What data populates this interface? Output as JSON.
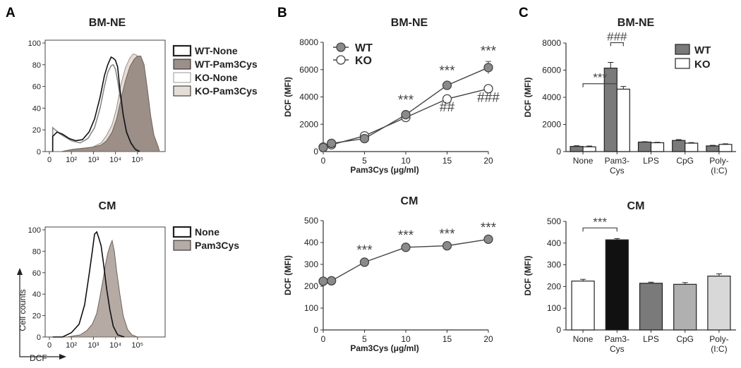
{
  "panels": {
    "A": "A",
    "B": "B",
    "C": "C"
  },
  "chart_data": [
    {
      "id": "A_top",
      "type": "histogram",
      "panel": "A",
      "title": "BM-NE",
      "x_ticks": [
        "0",
        "10²",
        "10³",
        "10⁴",
        "10⁵"
      ],
      "y_ticks": [
        0,
        20,
        40,
        60,
        80,
        100
      ],
      "ylim": [
        0,
        100
      ],
      "legend": [
        "WT-None",
        "WT-Pam3Cys",
        "KO-None",
        "KO-Pam3Cys"
      ],
      "series": [
        {
          "name": "KO-Pam3Cys",
          "fill": "#e6ddd7",
          "stroke": "#9a918c",
          "decades": [
            0.15,
            0.55,
            1.05,
            1.5,
            1.95,
            2.35,
            2.6,
            2.85,
            3.05,
            3.25,
            3.45,
            3.65,
            3.8,
            3.95,
            4.1,
            4.25,
            4.4,
            4.55,
            4.75,
            5.0
          ],
          "values": [
            0,
            0,
            2,
            3,
            4,
            8,
            15,
            25,
            40,
            62,
            77,
            86,
            90,
            89,
            82,
            64,
            38,
            16,
            4,
            0
          ]
        },
        {
          "name": "WT-Pam3Cys",
          "fill": "#9b8f88",
          "stroke": "#6e625c",
          "decades": [
            0.15,
            0.55,
            1.05,
            1.5,
            1.95,
            2.35,
            2.6,
            2.85,
            3.05,
            3.25,
            3.45,
            3.65,
            3.85,
            4.0,
            4.15,
            4.3,
            4.45,
            4.6,
            4.75,
            4.95,
            5.0
          ],
          "values": [
            0,
            0,
            2,
            3,
            4,
            6,
            10,
            18,
            30,
            48,
            65,
            78,
            85,
            88,
            88,
            80,
            58,
            33,
            15,
            4,
            0
          ]
        },
        {
          "name": "KO-None",
          "fill": "none",
          "stroke": "#888888",
          "decades": [
            0.15,
            0.5,
            1.0,
            1.4,
            1.75,
            2.05,
            2.3,
            2.5,
            2.65,
            2.8,
            2.9,
            3.0,
            3.1,
            3.2,
            3.3,
            3.45,
            3.6,
            3.8,
            4.0,
            4.2
          ],
          "values": [
            22,
            16,
            10,
            8,
            12,
            22,
            40,
            60,
            73,
            79,
            80,
            76,
            65,
            52,
            40,
            25,
            14,
            6,
            2,
            0
          ]
        },
        {
          "name": "WT-None",
          "fill": "none",
          "stroke": "#111111",
          "decades": [
            0.15,
            0.35,
            0.6,
            0.9,
            1.2,
            1.5,
            1.8,
            2.05,
            2.3,
            2.5,
            2.65,
            2.8,
            2.9,
            3.0,
            3.1,
            3.2,
            3.35,
            3.5,
            3.7,
            3.9,
            4.1
          ],
          "values": [
            14,
            18,
            16,
            12,
            10,
            11,
            18,
            30,
            50,
            70,
            80,
            87,
            86,
            84,
            78,
            58,
            34,
            18,
            8,
            2,
            0
          ]
        }
      ]
    },
    {
      "id": "A_bottom",
      "type": "histogram",
      "panel": "A",
      "title": "CM",
      "x_ticks": [
        "0",
        "10²",
        "10³",
        "10⁴",
        "10⁵"
      ],
      "y_ticks": [
        0,
        20,
        40,
        60,
        80,
        100
      ],
      "ylim": [
        0,
        100
      ],
      "xlabel": "DCF",
      "ylabel": "Cell counts",
      "legend": [
        "None",
        "Pam3Cys"
      ],
      "series": [
        {
          "name": "Pam3Cys",
          "fill": "#b5aaa4",
          "stroke": "#6e625c",
          "decades": [
            0.15,
            0.8,
            1.4,
            1.7,
            1.95,
            2.15,
            2.3,
            2.45,
            2.55,
            2.65,
            2.75,
            2.85,
            2.95,
            3.05,
            3.2,
            3.35,
            3.55,
            3.75,
            4.0
          ],
          "values": [
            0,
            0,
            2,
            6,
            12,
            22,
            38,
            55,
            68,
            78,
            85,
            90,
            80,
            62,
            40,
            20,
            7,
            2,
            0
          ]
        },
        {
          "name": "None",
          "fill": "none",
          "stroke": "#111111",
          "decades": [
            0.15,
            0.6,
            1.0,
            1.35,
            1.6,
            1.8,
            1.95,
            2.05,
            2.15,
            2.25,
            2.35,
            2.45,
            2.6,
            2.75,
            2.9,
            3.1,
            3.4
          ],
          "values": [
            0,
            0,
            4,
            12,
            30,
            58,
            80,
            96,
            98,
            92,
            85,
            70,
            45,
            25,
            10,
            2,
            0
          ]
        }
      ]
    },
    {
      "id": "B_top",
      "type": "line",
      "panel": "B",
      "title": "BM-NE",
      "xlabel": "Pam3Cys (μg/ml)",
      "ylabel": "DCF (MFI)",
      "xlim": [
        0,
        20
      ],
      "ylim": [
        0,
        8000
      ],
      "x_ticks": [
        0,
        5,
        10,
        15,
        20
      ],
      "y_ticks": [
        0,
        2000,
        4000,
        6000,
        8000
      ],
      "legend": [
        "WT",
        "KO"
      ],
      "series": [
        {
          "name": "KO",
          "marker": "open",
          "x": [
            0,
            1,
            5,
            10,
            15,
            20
          ],
          "values": [
            330,
            500,
            1150,
            2500,
            3850,
            4600
          ],
          "err": [
            0,
            0,
            0,
            0,
            0,
            0
          ]
        },
        {
          "name": "WT",
          "marker": "filled",
          "x": [
            0,
            1,
            5,
            10,
            15,
            20
          ],
          "values": [
            300,
            600,
            950,
            2700,
            4850,
            6150
          ],
          "err": [
            0,
            0,
            0,
            0,
            0,
            450
          ]
        }
      ],
      "annotations": [
        {
          "text": "***",
          "x": 10,
          "y": 3450
        },
        {
          "text": "***",
          "x": 15,
          "y": 5600
        },
        {
          "text": "***",
          "x": 20,
          "y": 7050
        },
        {
          "text": "##",
          "x": 15,
          "y": 2950
        },
        {
          "text": "###",
          "x": 20,
          "y": 3650
        }
      ]
    },
    {
      "id": "B_bottom",
      "type": "line",
      "panel": "B",
      "title": "CM",
      "xlabel": "Pam3Cys (μg/ml)",
      "ylabel": "DCF (MFI)",
      "xlim": [
        0,
        20
      ],
      "ylim": [
        0,
        500
      ],
      "x_ticks": [
        0,
        5,
        10,
        15,
        20
      ],
      "y_ticks": [
        0,
        100,
        200,
        300,
        400,
        500
      ],
      "series": [
        {
          "name": "CM",
          "marker": "filled",
          "x": [
            0,
            1,
            5,
            10,
            15,
            20
          ],
          "values": [
            223,
            225,
            310,
            378,
            385,
            415
          ],
          "err": [
            0,
            0,
            0,
            0,
            0,
            0
          ]
        }
      ],
      "annotations": [
        {
          "text": "***",
          "x": 5,
          "y": 345
        },
        {
          "text": "***",
          "x": 10,
          "y": 413
        },
        {
          "text": "***",
          "x": 15,
          "y": 420
        },
        {
          "text": "***",
          "x": 20,
          "y": 449
        }
      ]
    },
    {
      "id": "C_top",
      "type": "bar",
      "panel": "C",
      "title": "BM-NE",
      "ylabel": "DCF (MFI)",
      "ylim": [
        0,
        8000
      ],
      "y_ticks": [
        0,
        2000,
        4000,
        6000,
        8000
      ],
      "categories": [
        "None",
        "Pam3-Cys",
        "LPS",
        "CpG",
        "Poly-(I:C)"
      ],
      "category_lines": [
        [
          "None"
        ],
        [
          "Pam3-",
          "Cys"
        ],
        [
          "LPS"
        ],
        [
          "CpG"
        ],
        [
          "Poly-",
          "(I:C)"
        ]
      ],
      "legend": [
        "WT",
        "KO"
      ],
      "series": [
        {
          "name": "WT",
          "fill": "#7a7a7a",
          "values": [
            380,
            6150,
            700,
            820,
            420
          ],
          "err": [
            50,
            420,
            30,
            60,
            40
          ]
        },
        {
          "name": "KO",
          "fill": "#ffffff",
          "values": [
            350,
            4600,
            650,
            620,
            530
          ],
          "err": [
            60,
            200,
            30,
            40,
            40
          ]
        }
      ],
      "annotations": [
        {
          "text": "***",
          "type": "bracket",
          "from": "None",
          "to": "Pam3-Cys"
        },
        {
          "text": "###",
          "type": "bracket",
          "from": "WT",
          "to": "KO",
          "category": "Pam3-Cys"
        }
      ]
    },
    {
      "id": "C_bottom",
      "type": "bar",
      "panel": "C",
      "title": "CM",
      "ylabel": "DCF (MFI)",
      "ylim": [
        0,
        500
      ],
      "y_ticks": [
        0,
        100,
        200,
        300,
        400,
        500
      ],
      "categories": [
        "None",
        "Pam3-Cys",
        "LPS",
        "CpG",
        "Poly-(I:C)"
      ],
      "category_lines": [
        [
          "None"
        ],
        [
          "Pam3-",
          "Cys"
        ],
        [
          "LPS"
        ],
        [
          "CpG"
        ],
        [
          "Poly-",
          "(I:C)"
        ]
      ],
      "series": [
        {
          "name": "CM",
          "fills": [
            "#ffffff",
            "#111111",
            "#7a7a7a",
            "#b0b0b0",
            "#d8d8d8"
          ],
          "values": [
            225,
            415,
            215,
            210,
            248
          ],
          "err": [
            8,
            6,
            5,
            8,
            10
          ]
        }
      ],
      "annotations": [
        {
          "text": "***",
          "type": "bracket",
          "from": "None",
          "to": "Pam3-Cys"
        }
      ]
    }
  ]
}
